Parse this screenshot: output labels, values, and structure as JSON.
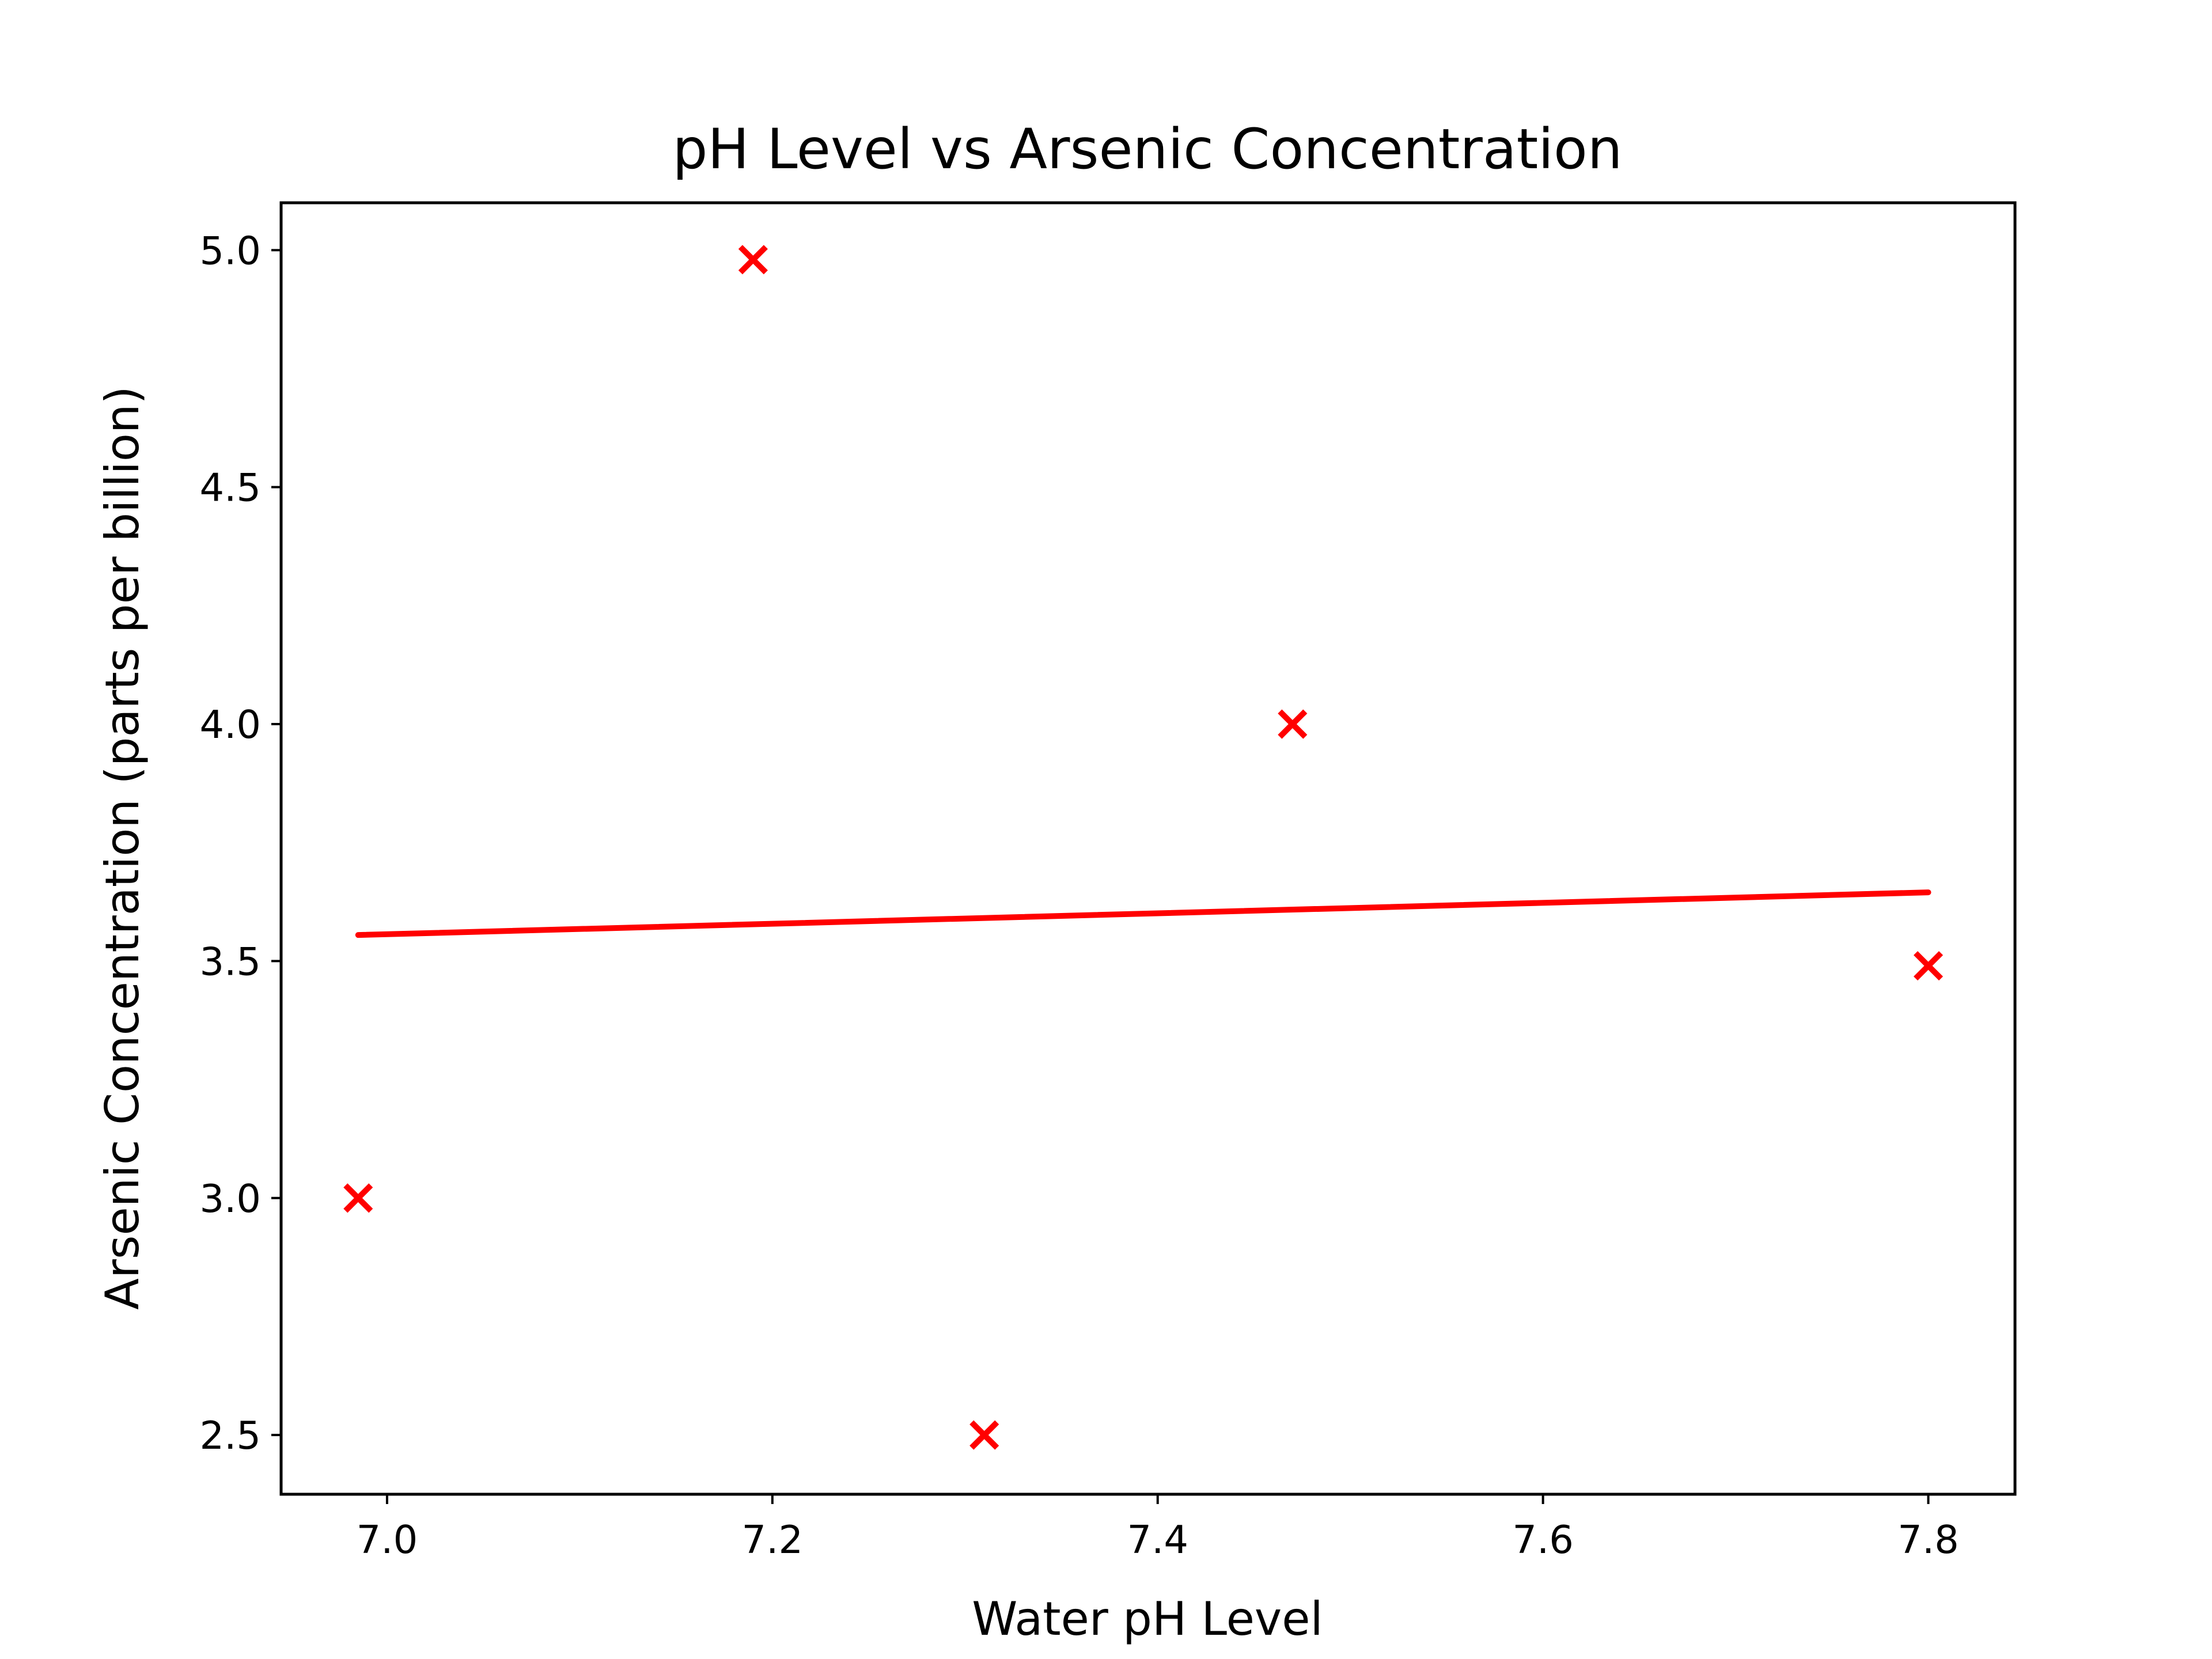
{
  "chart_data": {
    "type": "scatter",
    "title": "pH Level vs Arsenic Concentration",
    "xlabel": "Water pH Level",
    "ylabel": "Arsenic Concentration (parts per billion)",
    "xlim": [
      6.945,
      7.845
    ],
    "ylim": [
      2.375,
      5.1
    ],
    "x_ticks": [
      7.0,
      7.2,
      7.4,
      7.6,
      7.8
    ],
    "x_tick_labels": [
      "7.0",
      "7.2",
      "7.4",
      "7.6",
      "7.8"
    ],
    "y_ticks": [
      2.5,
      3.0,
      3.5,
      4.0,
      4.5,
      5.0
    ],
    "y_tick_labels": [
      "2.5",
      "3.0",
      "3.5",
      "4.0",
      "4.5",
      "5.0"
    ],
    "grid": false,
    "series": [
      {
        "kind": "scatter",
        "marker": "x",
        "color": "#ff0000",
        "points": [
          {
            "x": 6.985,
            "y": 3.0
          },
          {
            "x": 7.19,
            "y": 4.98
          },
          {
            "x": 7.31,
            "y": 2.5
          },
          {
            "x": 7.47,
            "y": 4.0
          },
          {
            "x": 7.8,
            "y": 3.49
          }
        ]
      },
      {
        "kind": "line",
        "color": "#ff0000",
        "points": [
          {
            "x": 6.985,
            "y": 3.555
          },
          {
            "x": 7.8,
            "y": 3.645
          }
        ]
      }
    ]
  }
}
